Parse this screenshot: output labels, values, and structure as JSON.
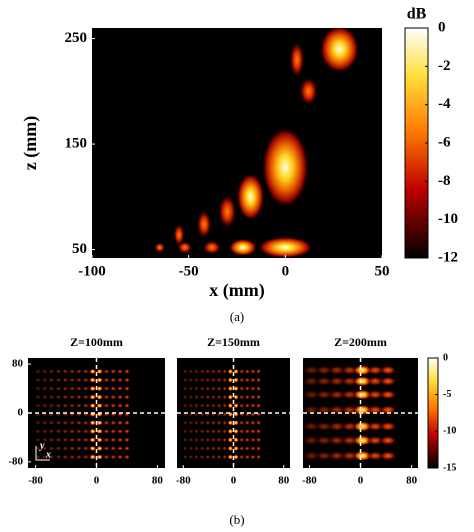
{
  "chart_data": [
    {
      "type": "heatmap",
      "xlabel": "x (mm)",
      "ylabel": "z (mm)",
      "xlim": [
        -100,
        50
      ],
      "xticks": [
        -100,
        -50,
        0,
        50
      ],
      "ylim": [
        42,
        260
      ],
      "yticks": [
        50,
        150,
        250
      ],
      "colorbar": {
        "label": "dB",
        "lim": [
          -12,
          0
        ],
        "ticks": [
          0,
          -2,
          -4,
          -6,
          -8,
          -10,
          -12
        ]
      },
      "caption": "(a)"
    },
    {
      "type": "heatmap",
      "title": "Z=100mm",
      "xlim": [
        -90,
        90
      ],
      "xticks": [
        -80,
        0,
        80
      ],
      "ylim": [
        -90,
        90
      ],
      "yticks": [
        -80,
        0,
        80
      ],
      "axis_labels": [
        "y",
        "x"
      ],
      "caption": "(b)"
    },
    {
      "type": "heatmap",
      "title": "Z=150mm",
      "xlim": [
        -90,
        90
      ],
      "xticks": [
        -80,
        0,
        80
      ],
      "ylim": [
        -90,
        90
      ]
    },
    {
      "type": "heatmap",
      "title": "Z=200mm",
      "xlim": [
        -90,
        90
      ],
      "xticks": [
        -80,
        0,
        80
      ],
      "ylim": [
        -90,
        90
      ],
      "colorbar": {
        "lim": [
          -15,
          0
        ],
        "ticks": [
          0,
          -5,
          -10,
          -15
        ]
      }
    }
  ]
}
